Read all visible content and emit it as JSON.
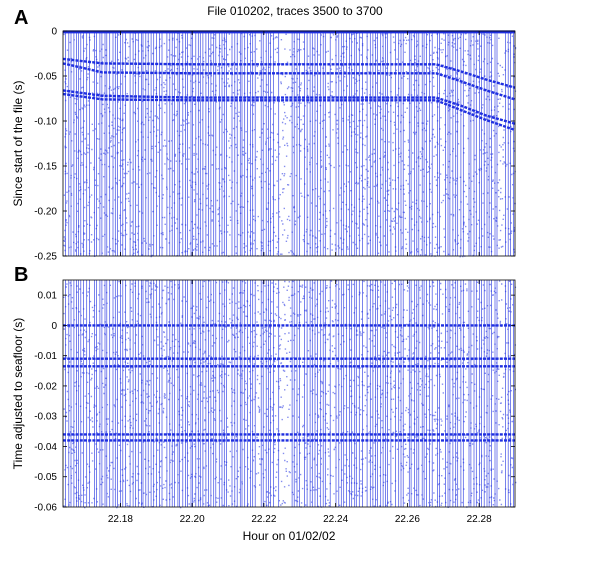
{
  "figure": {
    "title": "File 010202, traces 3500 to 3700"
  },
  "chart_data": [
    {
      "panel": "A",
      "type": "scatter",
      "title": "File 010202, traces 3500 to 3700",
      "xlabel": "",
      "ylabel": "Since start of the file (s)",
      "xlim": [
        22.164,
        22.29
      ],
      "ylim": [
        -0.25,
        0
      ],
      "yticks": [
        0,
        -0.05,
        -0.1,
        -0.15,
        -0.2,
        -0.25
      ],
      "ytick_labels": [
        "0",
        "-0.05",
        "-0.10",
        "-0.15",
        "-0.20",
        "-0.25"
      ],
      "grid": false,
      "color": "#1f2fe0",
      "series": [
        {
          "values": [
            [
              22.164,
              -0.031
            ],
            [
              22.175,
              -0.036
            ],
            [
              22.2,
              -0.037
            ],
            [
              22.23,
              -0.037
            ],
            [
              22.26,
              -0.037
            ],
            [
              22.268,
              -0.037
            ],
            [
              22.275,
              -0.045
            ],
            [
              22.282,
              -0.054
            ],
            [
              22.29,
              -0.063
            ]
          ]
        },
        {
          "values": [
            [
              22.164,
              -0.036
            ],
            [
              22.175,
              -0.046
            ],
            [
              22.2,
              -0.047
            ],
            [
              22.23,
              -0.047
            ],
            [
              22.26,
              -0.047
            ],
            [
              22.268,
              -0.047
            ],
            [
              22.275,
              -0.056
            ],
            [
              22.282,
              -0.066
            ],
            [
              22.29,
              -0.076
            ]
          ]
        },
        {
          "values": [
            [
              22.164,
              -0.066
            ],
            [
              22.175,
              -0.072
            ],
            [
              22.2,
              -0.074
            ],
            [
              22.23,
              -0.074
            ],
            [
              22.26,
              -0.074
            ],
            [
              22.268,
              -0.074
            ],
            [
              22.275,
              -0.083
            ],
            [
              22.282,
              -0.094
            ],
            [
              22.29,
              -0.103
            ]
          ]
        },
        {
          "values": [
            [
              22.164,
              -0.07
            ],
            [
              22.175,
              -0.076
            ],
            [
              22.2,
              -0.077
            ],
            [
              22.23,
              -0.077
            ],
            [
              22.26,
              -0.077
            ],
            [
              22.268,
              -0.077
            ],
            [
              22.275,
              -0.088
            ],
            [
              22.282,
              -0.099
            ],
            [
              22.29,
              -0.11
            ]
          ]
        }
      ]
    },
    {
      "panel": "B",
      "type": "scatter",
      "xlabel": "Hour on 01/02/02",
      "ylabel": "Time adjusted to seafloor (s)",
      "xlim": [
        22.164,
        22.29
      ],
      "ylim": [
        -0.06,
        0.015
      ],
      "xticks": [
        22.18,
        22.2,
        22.22,
        22.24,
        22.26,
        22.28
      ],
      "xtick_labels": [
        "22.18",
        "22.20",
        "22.22",
        "22.24",
        "22.26",
        "22.28"
      ],
      "yticks": [
        0.01,
        0,
        -0.01,
        -0.02,
        -0.03,
        -0.04,
        -0.05,
        -0.06
      ],
      "ytick_labels": [
        "0.01",
        "0",
        "-0.01",
        "-0.02",
        "-0.03",
        "-0.04",
        "-0.05",
        "-0.06"
      ],
      "grid": false,
      "color": "#1f2fe0",
      "series": [
        {
          "values": [
            [
              22.164,
              0.0
            ],
            [
              22.29,
              0.0
            ]
          ]
        },
        {
          "values": [
            [
              22.164,
              -0.011
            ],
            [
              22.29,
              -0.011
            ]
          ]
        },
        {
          "values": [
            [
              22.164,
              -0.0135
            ],
            [
              22.29,
              -0.0135
            ]
          ]
        },
        {
          "values": [
            [
              22.164,
              -0.036
            ],
            [
              22.29,
              -0.036
            ]
          ]
        },
        {
          "values": [
            [
              22.164,
              -0.038
            ],
            [
              22.29,
              -0.038
            ]
          ]
        }
      ]
    }
  ],
  "panels": {
    "a": {
      "label": "A"
    },
    "b": {
      "label": "B"
    }
  }
}
